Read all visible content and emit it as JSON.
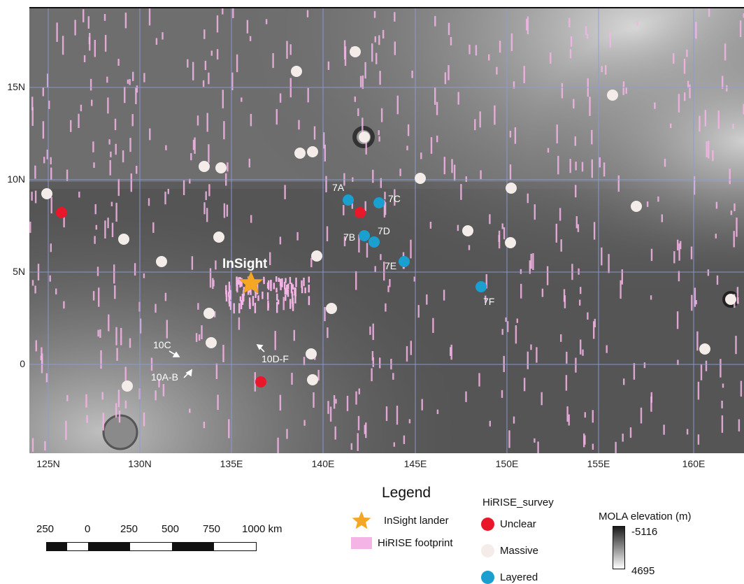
{
  "map": {
    "lander_label": "InSight",
    "site_labels": [
      "7A",
      "7B",
      "7C",
      "7D",
      "7E",
      "7F",
      "10C",
      "10A-B",
      "10D-F"
    ],
    "lat_ticks": [
      "15N",
      "10N",
      "5N",
      "0"
    ],
    "lon_ticks": [
      "125N",
      "130N",
      "135E",
      "140E",
      "145E",
      "150E",
      "155E",
      "160E"
    ],
    "colors": {
      "unclear": "#e8182a",
      "massive": "#f3ece8",
      "layered": "#1a9fcf",
      "hirise_footprint": "#f4b5e6",
      "lander": "#f5a623",
      "graticule": "#8f9cd8"
    }
  },
  "legend": {
    "title": "Legend",
    "lander_label": "InSight lander",
    "footprint_label": "HiRISE footprint",
    "survey_title": "HiRISE_survey",
    "unclear_label": "Unclear",
    "massive_label": "Massive",
    "layered_label": "Layered",
    "elevation_title": "MOLA elevation (m)",
    "elevation_min": "-5116",
    "elevation_max": "4695"
  },
  "scale_bar": {
    "labels": [
      "250",
      "0",
      "250",
      "500",
      "750",
      "1000 km"
    ]
  }
}
